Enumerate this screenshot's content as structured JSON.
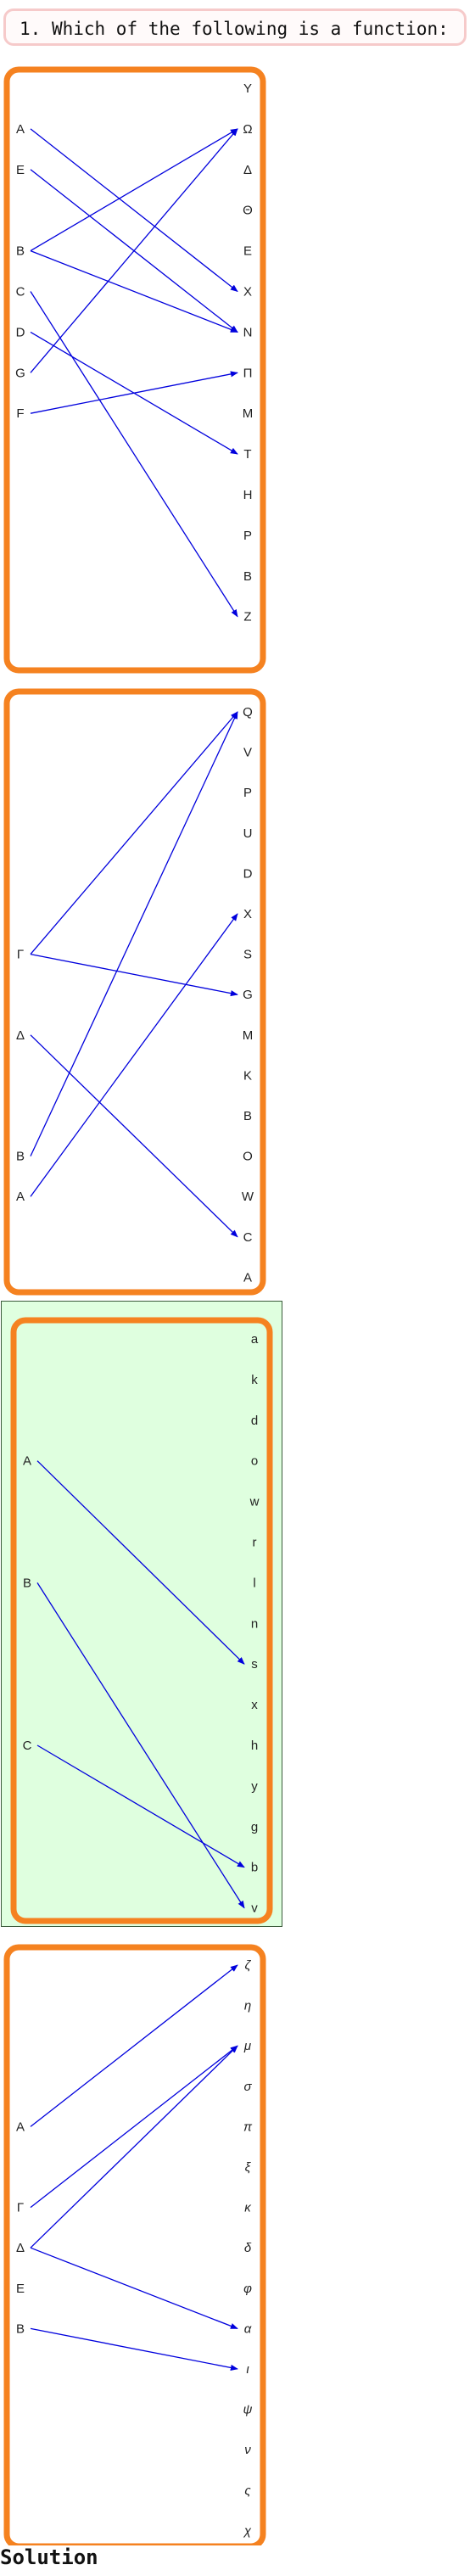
{
  "question": {
    "number": "1.",
    "text": "Which of the following is a function:"
  },
  "colors": {
    "frame": "#f58220",
    "arrow": "#0000dd",
    "selected_bg": "#dfffdf",
    "question_border": "#f6caca"
  },
  "options": [
    {
      "selected": false,
      "domain": [
        "A",
        "E",
        "B",
        "C",
        "D",
        "G",
        "F"
      ],
      "codomain": [
        "Y",
        "Ω",
        "Δ",
        "Θ",
        "E",
        "X",
        "N",
        "Π",
        "M",
        "T",
        "H",
        "P",
        "B",
        "Z"
      ],
      "mappings": [
        [
          "A",
          "X"
        ],
        [
          "E",
          "N"
        ],
        [
          "B",
          "Ω"
        ],
        [
          "B",
          "N"
        ],
        [
          "C",
          "Z"
        ],
        [
          "G",
          "Ω"
        ],
        [
          "D",
          "T"
        ],
        [
          "F",
          "Π"
        ]
      ],
      "domain_slots": [
        1,
        2,
        4,
        5,
        6,
        7,
        8
      ]
    },
    {
      "selected": false,
      "domain": [
        "Γ",
        "Δ",
        "B",
        "A"
      ],
      "codomain": [
        "Q",
        "V",
        "P",
        "U",
        "D",
        "X",
        "S",
        "G",
        "M",
        "K",
        "B",
        "O",
        "W",
        "C",
        "A"
      ],
      "mappings": [
        [
          "Γ",
          "Q"
        ],
        [
          "Γ",
          "G"
        ],
        [
          "Δ",
          "C"
        ],
        [
          "B",
          "Q"
        ],
        [
          "A",
          "X"
        ]
      ],
      "domain_slots": [
        6,
        8,
        11,
        12
      ]
    },
    {
      "selected": true,
      "domain": [
        "A",
        "B",
        "C"
      ],
      "codomain": [
        "a",
        "k",
        "d",
        "o",
        "w",
        "r",
        "l",
        "n",
        "s",
        "x",
        "h",
        "y",
        "g",
        "b",
        "v"
      ],
      "mappings": [
        [
          "A",
          "s"
        ],
        [
          "B",
          "v"
        ],
        [
          "C",
          "b"
        ]
      ],
      "domain_slots": [
        3,
        6,
        10
      ]
    },
    {
      "selected": false,
      "domain": [
        "A",
        "Γ",
        "Δ",
        "E",
        "B"
      ],
      "codomain": [
        "ζ",
        "η",
        "μ",
        "σ",
        "π",
        "ξ",
        "κ",
        "δ",
        "φ",
        "α",
        "ι",
        "ψ",
        "ν",
        "ς",
        "χ"
      ],
      "mappings": [
        [
          "A",
          "ζ"
        ],
        [
          "Γ",
          "μ"
        ],
        [
          "Δ",
          "μ"
        ],
        [
          "Δ",
          "α"
        ],
        [
          "B",
          "ι"
        ]
      ],
      "domain_slots": [
        4,
        6,
        7,
        8,
        9
      ]
    }
  ],
  "solution_label": "Solution"
}
